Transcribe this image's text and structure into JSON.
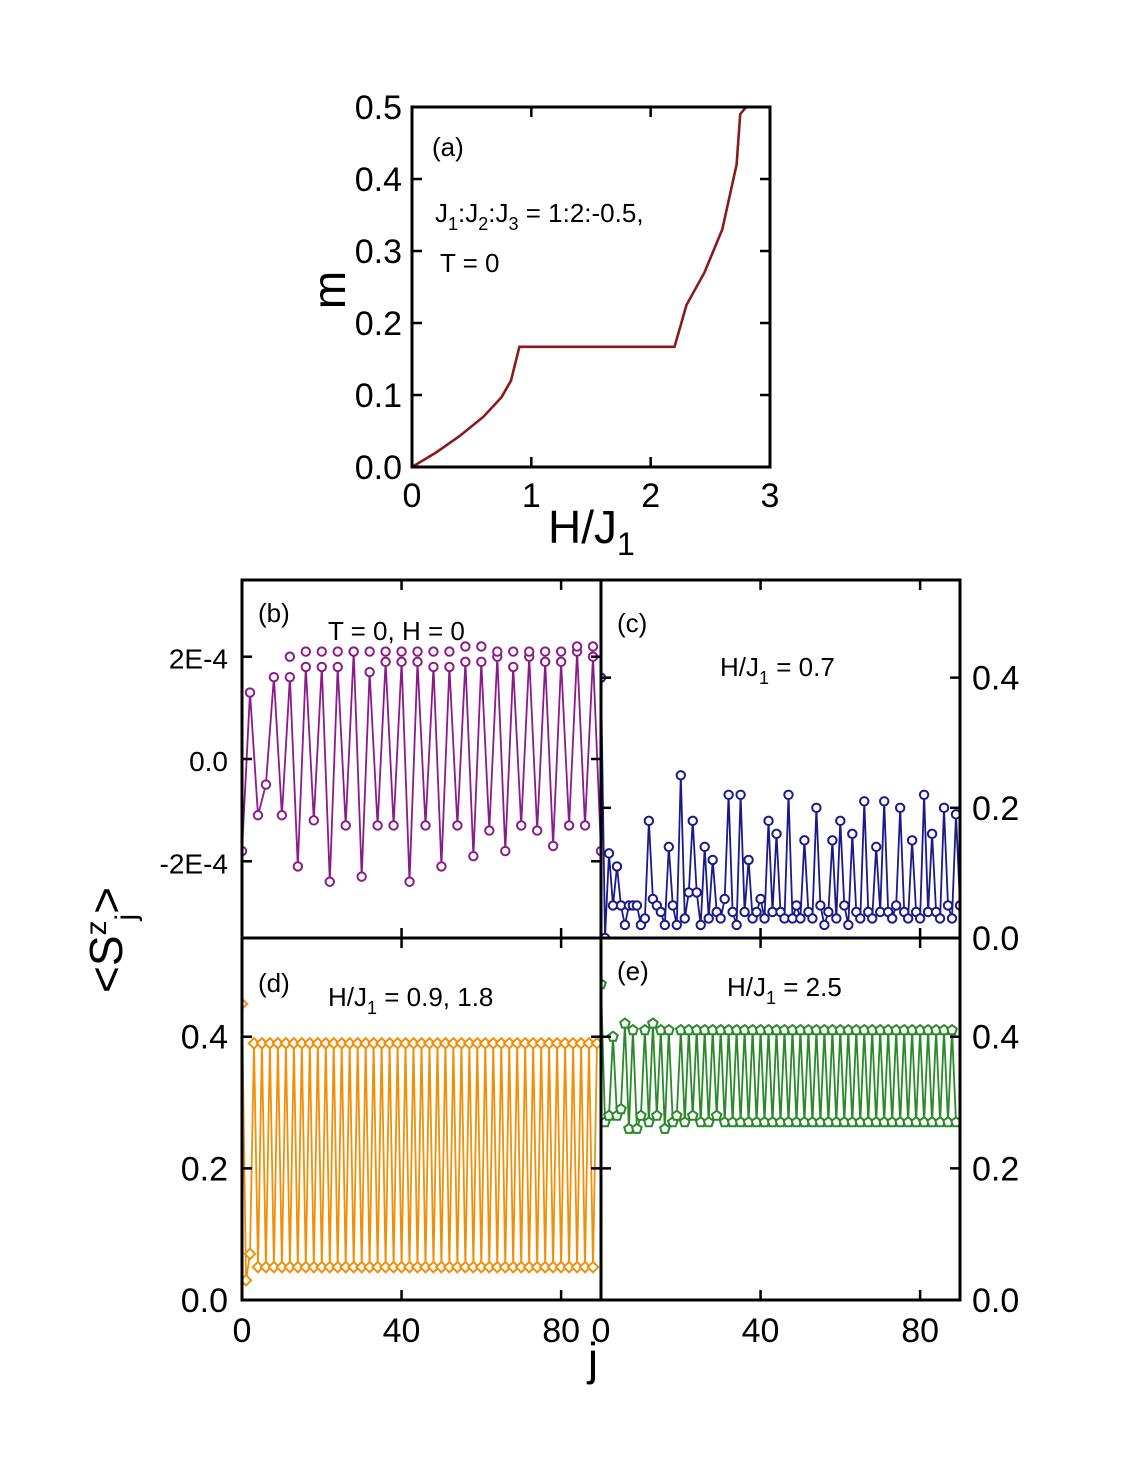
{
  "figure": {
    "ylabel_bottom": {
      "main": "<S",
      "sup": "z",
      "sub": "j",
      "end": ">"
    },
    "xlabel_bottom": "j"
  },
  "chart_data": [
    {
      "id": "a",
      "type": "line",
      "panel_label": "(a)",
      "annotation_line1": {
        "p1": "J",
        "s1": "1",
        "p2": ":J",
        "s2": "2",
        "p3": ":J",
        "s3": "3",
        "p4": " = 1:2:-0.5,"
      },
      "annotation_line2": "T = 0",
      "xlabel": {
        "main": "H/J",
        "sub": "1"
      },
      "ylabel": "m",
      "xlim": [
        0,
        3
      ],
      "ylim": [
        0,
        0.5
      ],
      "xticks": [
        "0",
        "1",
        "2",
        "3"
      ],
      "yticks": [
        "0.0",
        "0.1",
        "0.2",
        "0.3",
        "0.4",
        "0.5"
      ],
      "color": "#8b1a1a",
      "series": [
        {
          "x": [
            0,
            0.2,
            0.4,
            0.6,
            0.75,
            0.83,
            0.9,
            1.2,
            1.6,
            2.0,
            2.2,
            2.3,
            2.45,
            2.6,
            2.72,
            2.75,
            2.8,
            3.0
          ],
          "y": [
            0,
            0.02,
            0.043,
            0.07,
            0.097,
            0.12,
            0.167,
            0.167,
            0.167,
            0.167,
            0.167,
            0.225,
            0.27,
            0.33,
            0.42,
            0.49,
            0.5,
            0.5
          ]
        }
      ]
    },
    {
      "id": "b",
      "type": "line",
      "panel_label": "(b)",
      "annotation": "T = 0, H = 0",
      "xlim": [
        0,
        90
      ],
      "ylim": [
        -0.00035,
        0.00035
      ],
      "yticks": [
        "2E-4",
        "0.0",
        "-2E-4"
      ],
      "ytick_values": [
        0.0002,
        0,
        -0.0002
      ],
      "marker": "circle",
      "color": "#8b1a8b",
      "series": [
        {
          "x_start": 0,
          "x_step": 2,
          "values": [
            -0.00018,
            0.00013,
            -0.00011,
            -5e-05,
            0.00016,
            -0.00011,
            0.00016,
            -0.00021,
            0.00018,
            -0.00012,
            0.00018,
            -0.00024,
            0.00018,
            -0.00013,
            0.00021,
            -0.00023,
            0.00017,
            -0.00013,
            0.00019,
            -0.00013,
            0.00019,
            -0.00024,
            0.00019,
            -0.00013,
            0.00018,
            -0.00021,
            0.00018,
            -0.00013,
            0.00019,
            -0.00019,
            0.00019,
            -0.00014,
            0.0002,
            -0.00018,
            0.00018,
            -0.00013,
            0.0002,
            -0.00014,
            0.00019,
            -0.00017,
            0.00019,
            -0.00013,
            0.00021,
            -0.00013,
            0.0002,
            -0.00018,
            0.00019,
            -0.00014
          ],
          "peaks_x_start": 12,
          "peaks_x_step": 4,
          "peaks": [
            0.0002,
            0.00021,
            0.00021,
            0.00021,
            0.00021,
            0.00021,
            0.00021,
            0.00021,
            0.00021,
            0.00021,
            0.00021,
            0.00022,
            0.00022,
            0.00021,
            0.00021,
            0.00021,
            0.00021,
            0.00021,
            0.00022,
            0.00022
          ]
        }
      ]
    },
    {
      "id": "c",
      "type": "line",
      "panel_label": "(c)",
      "annotation": {
        "main": "H/J",
        "sub": "1",
        "rest": " = 0.7"
      },
      "xlim": [
        0,
        90
      ],
      "ylim": [
        0,
        0.55
      ],
      "yticks": [
        "0.0",
        "0.2",
        "0.4"
      ],
      "ytick_values": [
        0,
        0.2,
        0.4
      ],
      "marker": "circle",
      "color": "#1a1a8b",
      "series": [
        {
          "x_start": 0,
          "x_step": 1,
          "values": [
            0.4,
            0,
            0.13,
            0.05,
            0.11,
            0.05,
            0.02,
            0.05,
            0.05,
            0.05,
            0.02,
            0.03,
            0.18,
            0.06,
            0.05,
            0.04,
            0.02,
            0.14,
            0.05,
            0.02,
            0.25,
            0.03,
            0.07,
            0.18,
            0.07,
            0.02,
            0.14,
            0.03,
            0.12,
            0.04,
            0.03,
            0.06,
            0.22,
            0.04,
            0.02,
            0.22,
            0.04,
            0.12,
            0.03,
            0.04,
            0.06,
            0.03,
            0.18,
            0.04,
            0.16,
            0.04,
            0.03,
            0.22,
            0.03,
            0.05,
            0.03,
            0.15,
            0.04,
            0.03,
            0.2,
            0.05,
            0.02,
            0.04,
            0.15,
            0.03,
            0.18,
            0.05,
            0.02,
            0.16,
            0.04,
            0.03,
            0.21,
            0.04,
            0.03,
            0.14,
            0.04,
            0.21,
            0.04,
            0.03,
            0.05,
            0.2,
            0.04,
            0.03,
            0.15,
            0.04,
            0.03,
            0.22,
            0.04,
            0.16,
            0.04,
            0.03,
            0.2,
            0.05,
            0.03,
            0.19,
            0.05
          ]
        }
      ]
    },
    {
      "id": "d",
      "type": "line",
      "panel_label": "(d)",
      "annotation": {
        "main": "H/J",
        "sub": "1",
        "rest": " = 0.9, 1.8"
      },
      "xlim": [
        0,
        90
      ],
      "ylim": [
        0,
        0.55
      ],
      "xticks": [
        "0",
        "40",
        "80"
      ],
      "xtick_values": [
        0,
        40,
        80
      ],
      "yticks": [
        "0.0",
        "0.2",
        "0.4"
      ],
      "ytick_values": [
        0,
        0.2,
        0.4
      ],
      "marker": "diamond",
      "color": "#f0900a",
      "series": [
        {
          "x_start": 0,
          "x_step": 1,
          "values": [
            0.45,
            0.03,
            0.07,
            0.39,
            0.05,
            0.39,
            0.05,
            0.39,
            0.05,
            0.39,
            0.05,
            0.39,
            0.05,
            0.39,
            0.05,
            0.39,
            0.05,
            0.39,
            0.05,
            0.39,
            0.05,
            0.39,
            0.05,
            0.39,
            0.05,
            0.39,
            0.05,
            0.39,
            0.05,
            0.39,
            0.05,
            0.39,
            0.05,
            0.39,
            0.05,
            0.39,
            0.05,
            0.39,
            0.05,
            0.39,
            0.05,
            0.39,
            0.05,
            0.39,
            0.05,
            0.39,
            0.05,
            0.39,
            0.05,
            0.39,
            0.05,
            0.39,
            0.05,
            0.39,
            0.05,
            0.39,
            0.05,
            0.39,
            0.05,
            0.39,
            0.05,
            0.39,
            0.05,
            0.39,
            0.05,
            0.39,
            0.05,
            0.39,
            0.05,
            0.39,
            0.05,
            0.39,
            0.05,
            0.39,
            0.05,
            0.39,
            0.05,
            0.39,
            0.05,
            0.39,
            0.05,
            0.39,
            0.05,
            0.39,
            0.05,
            0.39,
            0.05,
            0.39,
            0.05,
            0.39
          ]
        }
      ]
    },
    {
      "id": "e",
      "type": "line",
      "panel_label": "(e)",
      "annotation": {
        "main": "H/J",
        "sub": "1",
        "rest": " = 2.5"
      },
      "xlim": [
        0,
        90
      ],
      "ylim": [
        0,
        0.55
      ],
      "xticks": [
        "0",
        "40",
        "80"
      ],
      "xtick_values": [
        0,
        40,
        80
      ],
      "yticks": [
        "0.0",
        "0.2",
        "0.4"
      ],
      "ytick_values": [
        0,
        0.2,
        0.4
      ],
      "marker": "pentagon",
      "color": "#2a8a2a",
      "series": [
        {
          "x_start": 0,
          "x_step": 1,
          "values": [
            0.48,
            0.27,
            0.28,
            0.4,
            0.28,
            0.29,
            0.42,
            0.26,
            0.41,
            0.26,
            0.28,
            0.41,
            0.27,
            0.42,
            0.28,
            0.41,
            0.26,
            0.41,
            0.27,
            0.28,
            0.41,
            0.27,
            0.41,
            0.28,
            0.41,
            0.27,
            0.41,
            0.27,
            0.41,
            0.28,
            0.41,
            0.27,
            0.41,
            0.27,
            0.41,
            0.27,
            0.41,
            0.27,
            0.41,
            0.27,
            0.41,
            0.27,
            0.41,
            0.27,
            0.41,
            0.27,
            0.41,
            0.27,
            0.41,
            0.27,
            0.41,
            0.27,
            0.41,
            0.27,
            0.41,
            0.27,
            0.41,
            0.27,
            0.41,
            0.27,
            0.41,
            0.27,
            0.41,
            0.27,
            0.41,
            0.27,
            0.41,
            0.27,
            0.41,
            0.27,
            0.41,
            0.27,
            0.41,
            0.27,
            0.41,
            0.27,
            0.41,
            0.27,
            0.41,
            0.27,
            0.41,
            0.27,
            0.41,
            0.27,
            0.41,
            0.27,
            0.41,
            0.27,
            0.41,
            0.27
          ]
        }
      ]
    }
  ]
}
